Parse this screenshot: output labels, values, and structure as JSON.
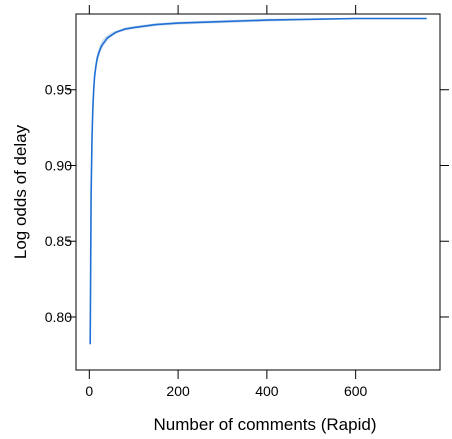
{
  "chart_data": {
    "type": "line",
    "title": "",
    "xlabel": "Number of comments (Rapid)",
    "ylabel": "Log odds of delay",
    "xlim": [
      -30,
      790
    ],
    "ylim": [
      0.765,
      1.0
    ],
    "x_ticks": [
      0,
      200,
      400,
      600
    ],
    "x_tick_labels": [
      "0",
      "200",
      "400",
      "600"
    ],
    "y_ticks": [
      0.8,
      0.85,
      0.9,
      0.95
    ],
    "y_tick_labels": [
      "0.80",
      "0.85",
      "0.90",
      "0.95"
    ],
    "grid": false,
    "legend": "none",
    "colors": {
      "line": "#1f6fd6",
      "band": "#c9daea",
      "axis": "#000000"
    },
    "series": [
      {
        "x": [
          2,
          4,
          6,
          8,
          10,
          12,
          15,
          18,
          22,
          26,
          30,
          35,
          40,
          50,
          60,
          80,
          100,
          150,
          200,
          300,
          400,
          500,
          600,
          700,
          760
        ],
        "y": [
          0.782,
          0.88,
          0.918,
          0.939,
          0.951,
          0.959,
          0.966,
          0.971,
          0.975,
          0.978,
          0.98,
          0.982,
          0.984,
          0.986,
          0.988,
          0.99,
          0.991,
          0.993,
          0.994,
          0.995,
          0.996,
          0.9965,
          0.997,
          0.997,
          0.997
        ],
        "lower": [
          0.77,
          0.87,
          0.912,
          0.934,
          0.947,
          0.955,
          0.962,
          0.968,
          0.972,
          0.975,
          0.978,
          0.98,
          0.982,
          0.985,
          0.987,
          0.989,
          0.99,
          0.992,
          0.993,
          0.994,
          0.995,
          0.996,
          0.9965,
          0.9965,
          0.9965
        ],
        "upper": [
          0.795,
          0.89,
          0.924,
          0.944,
          0.955,
          0.963,
          0.97,
          0.974,
          0.978,
          0.981,
          0.983,
          0.985,
          0.986,
          0.988,
          0.989,
          0.991,
          0.992,
          0.994,
          0.995,
          0.996,
          0.997,
          0.997,
          0.9975,
          0.9975,
          0.9975
        ]
      }
    ]
  }
}
